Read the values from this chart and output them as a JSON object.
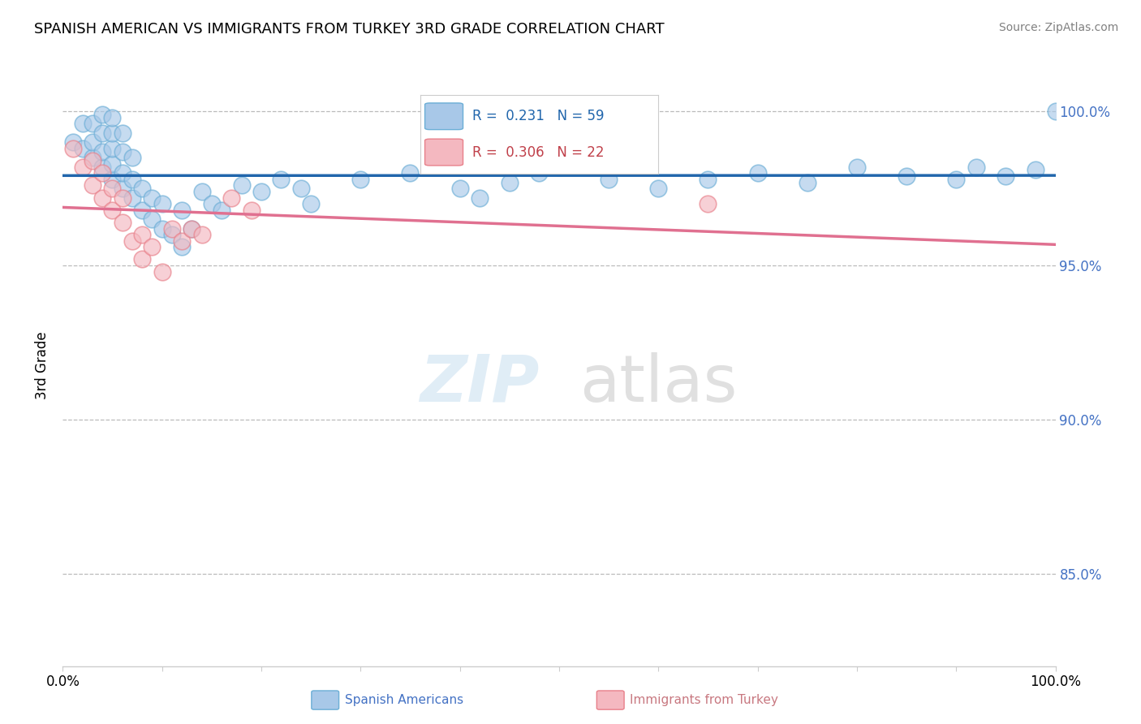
{
  "title": "SPANISH AMERICAN VS IMMIGRANTS FROM TURKEY 3RD GRADE CORRELATION CHART",
  "source": "Source: ZipAtlas.com",
  "ylabel": "3rd Grade",
  "xlim": [
    0.0,
    1.0
  ],
  "ylim": [
    0.82,
    1.015
  ],
  "yticks": [
    0.85,
    0.9,
    0.95,
    1.0
  ],
  "ytick_labels": [
    "85.0%",
    "90.0%",
    "95.0%",
    "100.0%"
  ],
  "blue_color": "#a8c8e8",
  "blue_edge_color": "#6baed6",
  "pink_color": "#f4b8c0",
  "pink_edge_color": "#e8808a",
  "blue_line_color": "#2166ac",
  "pink_line_color": "#e07090",
  "legend_blue_r": "0.231",
  "legend_blue_n": "59",
  "legend_pink_r": "0.306",
  "legend_pink_n": "22",
  "blue_x": [
    0.01,
    0.02,
    0.02,
    0.03,
    0.03,
    0.03,
    0.04,
    0.04,
    0.04,
    0.04,
    0.05,
    0.05,
    0.05,
    0.05,
    0.05,
    0.06,
    0.06,
    0.06,
    0.06,
    0.07,
    0.07,
    0.07,
    0.08,
    0.08,
    0.09,
    0.09,
    0.1,
    0.1,
    0.11,
    0.12,
    0.12,
    0.13,
    0.14,
    0.15,
    0.16,
    0.18,
    0.2,
    0.22,
    0.24,
    0.25,
    0.3,
    0.35,
    0.4,
    0.42,
    0.45,
    0.48,
    0.5,
    0.55,
    0.6,
    0.65,
    0.7,
    0.75,
    0.8,
    0.85,
    0.9,
    0.92,
    0.95,
    0.98,
    1.0
  ],
  "blue_y": [
    0.99,
    0.988,
    0.996,
    0.985,
    0.99,
    0.996,
    0.982,
    0.987,
    0.993,
    0.999,
    0.978,
    0.983,
    0.988,
    0.993,
    0.998,
    0.975,
    0.98,
    0.987,
    0.993,
    0.972,
    0.978,
    0.985,
    0.968,
    0.975,
    0.965,
    0.972,
    0.962,
    0.97,
    0.96,
    0.956,
    0.968,
    0.962,
    0.974,
    0.97,
    0.968,
    0.976,
    0.974,
    0.978,
    0.975,
    0.97,
    0.978,
    0.98,
    0.975,
    0.972,
    0.977,
    0.98,
    0.982,
    0.978,
    0.975,
    0.978,
    0.98,
    0.977,
    0.982,
    0.979,
    0.978,
    0.982,
    0.979,
    0.981,
    1.0
  ],
  "pink_x": [
    0.01,
    0.02,
    0.03,
    0.03,
    0.04,
    0.04,
    0.05,
    0.05,
    0.06,
    0.06,
    0.07,
    0.08,
    0.08,
    0.09,
    0.1,
    0.11,
    0.12,
    0.13,
    0.14,
    0.17,
    0.19,
    0.65
  ],
  "pink_y": [
    0.988,
    0.982,
    0.976,
    0.984,
    0.972,
    0.98,
    0.968,
    0.975,
    0.964,
    0.972,
    0.958,
    0.952,
    0.96,
    0.956,
    0.948,
    0.962,
    0.958,
    0.962,
    0.96,
    0.972,
    0.968,
    0.97
  ]
}
